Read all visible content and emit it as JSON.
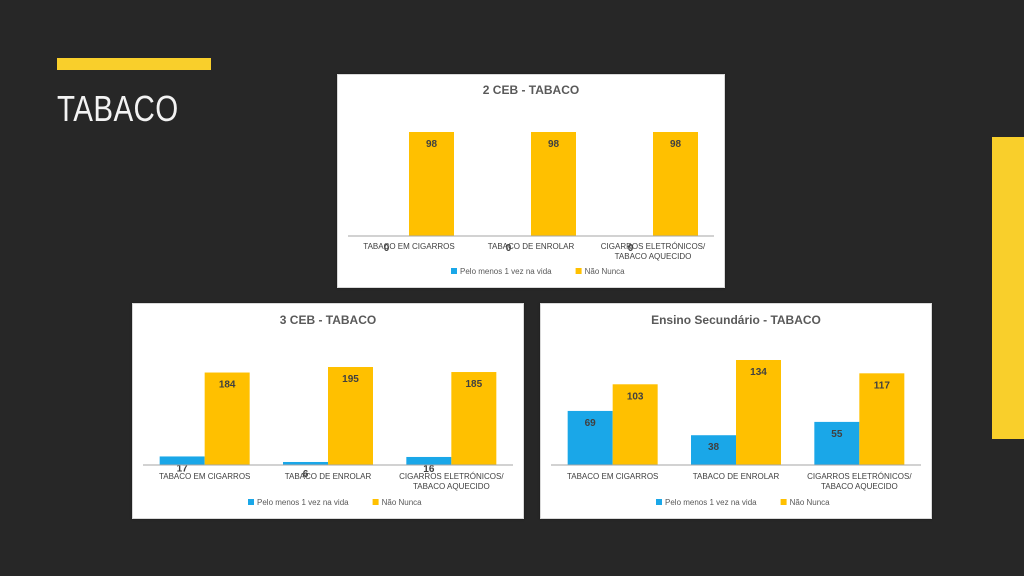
{
  "slide": {
    "title": "TABACO"
  },
  "colors": {
    "accent": "#f9cf2b",
    "background": "#272727",
    "series_blue": "#1aa7e8",
    "series_orange": "#ffc000"
  },
  "chart_data": [
    {
      "type": "bar",
      "title": "2 CEB - TABACO",
      "categories": [
        [
          "TABACO EM CIGARROS"
        ],
        [
          "TABACO DE ENROLAR"
        ],
        [
          "CIGARROS ELETRÓNICOS/",
          "TABACO AQUECIDO"
        ]
      ],
      "series": [
        {
          "name": "Pelo menos 1 vez na vida",
          "values": [
            0,
            0,
            0
          ],
          "color": "#1aa7e8"
        },
        {
          "name": "Não Nunca",
          "values": [
            98,
            98,
            98
          ],
          "color": "#ffc000"
        }
      ],
      "ylim": [
        0,
        98
      ],
      "legend_position": "bottom",
      "grid": false
    },
    {
      "type": "bar",
      "title": "3 CEB - TABACO",
      "categories": [
        [
          "TABACO EM CIGARROS"
        ],
        [
          "TABACO DE ENROLAR"
        ],
        [
          "CIGARROS ELETRÓNICOS/",
          "TABACO AQUECIDO"
        ]
      ],
      "series": [
        {
          "name": "Pelo menos 1 vez na vida",
          "values": [
            17,
            6,
            16
          ],
          "color": "#1aa7e8"
        },
        {
          "name": "Não Nunca",
          "values": [
            184,
            195,
            185
          ],
          "color": "#ffc000"
        }
      ],
      "ylim": [
        0,
        195
      ],
      "legend_position": "bottom",
      "grid": false
    },
    {
      "type": "bar",
      "title": "Ensino Secundário - TABACO",
      "categories": [
        [
          "TABACO EM CIGARROS"
        ],
        [
          "TABACO DE ENROLAR"
        ],
        [
          "CIGARROS ELETRÓNICOS/",
          "TABACO AQUECIDO"
        ]
      ],
      "series": [
        {
          "name": "Pelo menos 1 vez na vida",
          "values": [
            69,
            38,
            55
          ],
          "color": "#1aa7e8"
        },
        {
          "name": "Não Nunca",
          "values": [
            103,
            134,
            117
          ],
          "color": "#ffc000"
        }
      ],
      "ylim": [
        0,
        134
      ],
      "legend_position": "bottom",
      "grid": false
    }
  ]
}
